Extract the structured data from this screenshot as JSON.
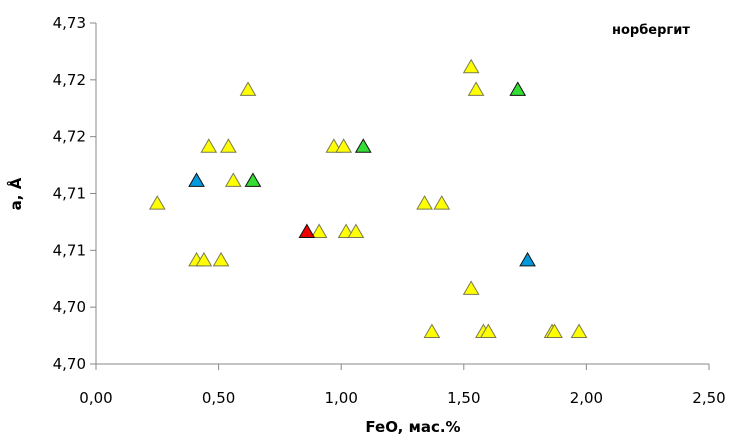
{
  "chart_data": {
    "type": "scatter",
    "annotation": "норбергит",
    "xlabel": "FeO, мас.%",
    "ylabel": "a, Å",
    "xlim": [
      0,
      2.5
    ],
    "ylim": [
      4.7,
      4.73
    ],
    "x_ticks": [
      0,
      0.5,
      1.0,
      1.5,
      2.0,
      2.5
    ],
    "x_tick_labels": [
      "0,00",
      "0,50",
      "1,00",
      "1,50",
      "2,00",
      "2,50"
    ],
    "y_ticks": [
      4.7,
      4.705,
      4.71,
      4.715,
      4.72,
      4.725,
      4.73
    ],
    "y_tick_labels": [
      "4,70",
      "4,70",
      "4,71",
      "4,71",
      "4,72",
      "4,72",
      "4,73"
    ],
    "grid": false,
    "marker": "triangle",
    "colors": {
      "yellow": "#ffff00",
      "blue": "#0099dd",
      "green": "#33dd33",
      "red": "#ee0000"
    },
    "series": [
      {
        "color": "yellow",
        "points": [
          {
            "x": 0.25,
            "y": 4.7142
          },
          {
            "x": 0.41,
            "y": 4.7092
          },
          {
            "x": 0.44,
            "y": 4.7092
          },
          {
            "x": 0.51,
            "y": 4.7092
          },
          {
            "x": 0.46,
            "y": 4.7192
          },
          {
            "x": 0.54,
            "y": 4.7192
          },
          {
            "x": 0.56,
            "y": 4.7162
          },
          {
            "x": 0.62,
            "y": 4.7242
          },
          {
            "x": 0.91,
            "y": 4.7117
          },
          {
            "x": 0.97,
            "y": 4.7192
          },
          {
            "x": 1.01,
            "y": 4.7192
          },
          {
            "x": 1.02,
            "y": 4.7117
          },
          {
            "x": 1.06,
            "y": 4.7117
          },
          {
            "x": 1.34,
            "y": 4.7142
          },
          {
            "x": 1.41,
            "y": 4.7142
          },
          {
            "x": 1.53,
            "y": 4.7262
          },
          {
            "x": 1.55,
            "y": 4.7242
          },
          {
            "x": 1.53,
            "y": 4.7067
          },
          {
            "x": 1.37,
            "y": 4.7029
          },
          {
            "x": 1.58,
            "y": 4.7029
          },
          {
            "x": 1.6,
            "y": 4.7029
          },
          {
            "x": 1.86,
            "y": 4.7029
          },
          {
            "x": 1.87,
            "y": 4.7029
          },
          {
            "x": 1.97,
            "y": 4.7029
          }
        ]
      },
      {
        "color": "blue",
        "points": [
          {
            "x": 0.41,
            "y": 4.7162
          },
          {
            "x": 1.76,
            "y": 4.7092
          }
        ]
      },
      {
        "color": "green",
        "points": [
          {
            "x": 0.64,
            "y": 4.7162
          },
          {
            "x": 1.09,
            "y": 4.7192
          },
          {
            "x": 1.72,
            "y": 4.7242
          }
        ]
      },
      {
        "color": "red",
        "points": [
          {
            "x": 0.86,
            "y": 4.7117
          }
        ]
      }
    ]
  }
}
